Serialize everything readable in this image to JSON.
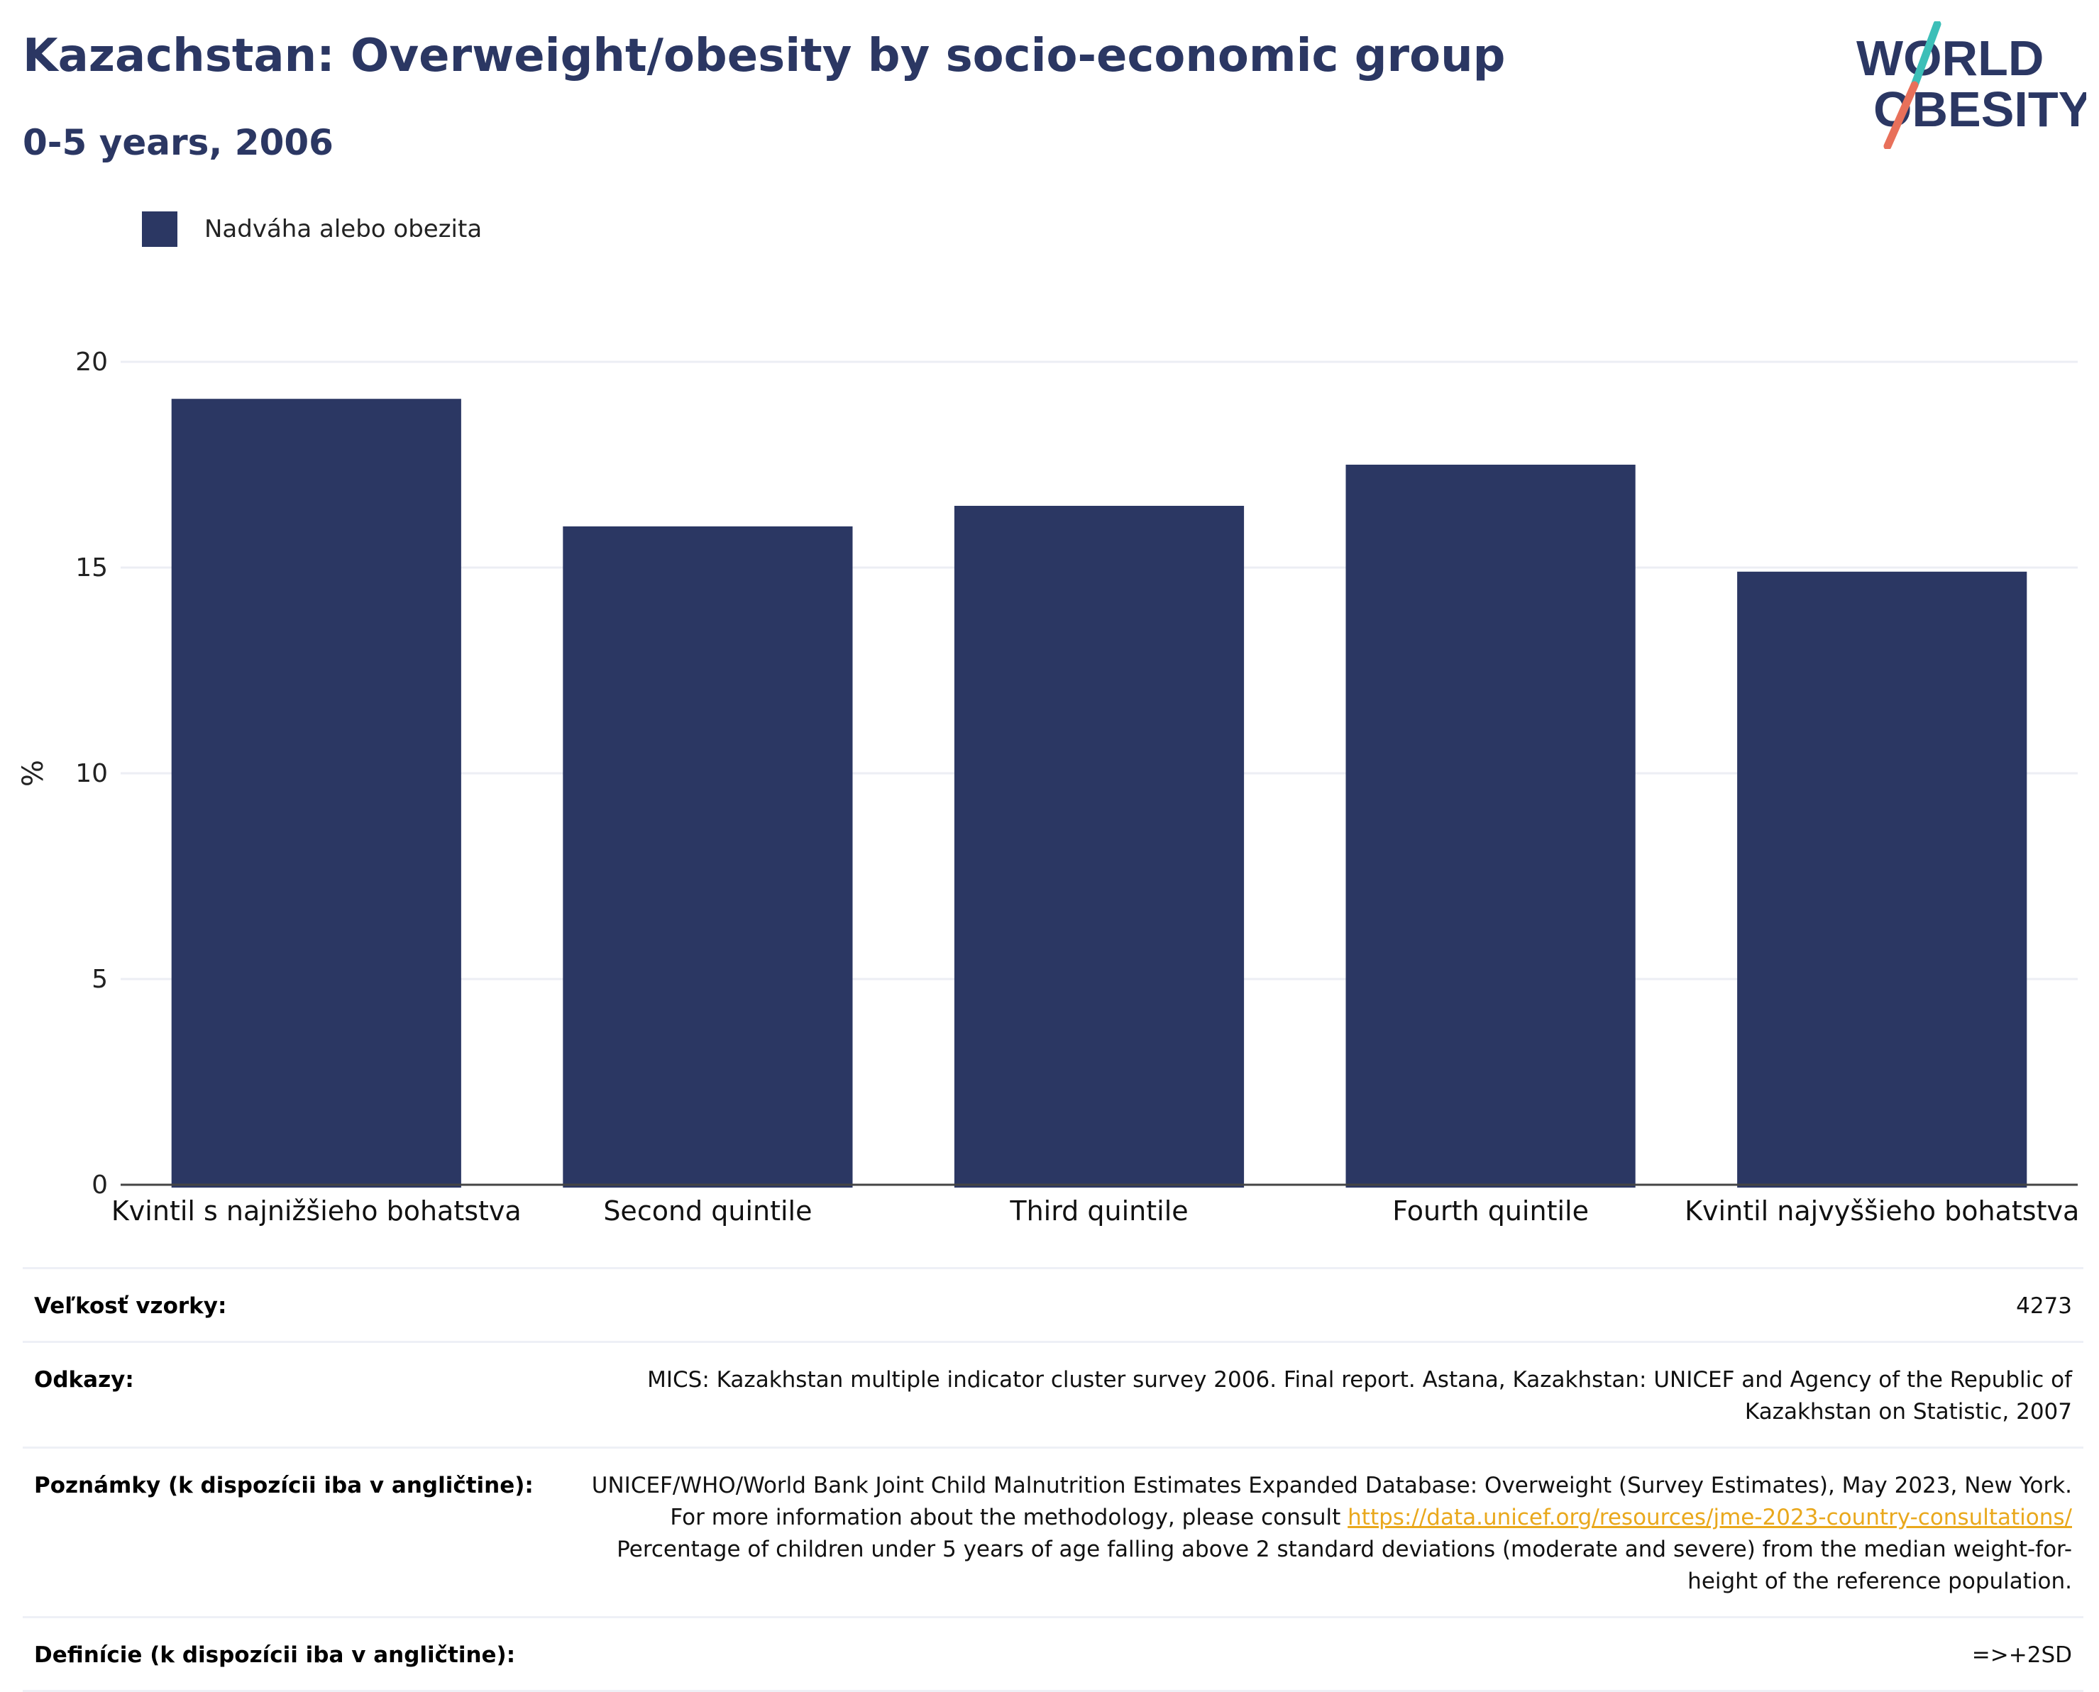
{
  "header": {
    "title": "Kazachstan: Overweight/obesity by socio-economic group",
    "subtitle": "0-5 years, 2006"
  },
  "logo": {
    "line1": "WORLD",
    "line2": "OBESITY",
    "colors": {
      "text": "#2b3763",
      "slash_top": "#3dbfb8",
      "slash_bottom": "#e8705a"
    }
  },
  "legend": {
    "label": "Nadváha alebo obezita",
    "color": "#2b3763"
  },
  "chart_data": {
    "type": "bar",
    "categories": [
      "Kvintil s najnižšieho bohatstva",
      "Second quintile",
      "Third quintile",
      "Fourth quintile",
      "Kvintil najvyššieho bohatstva"
    ],
    "series": [
      {
        "name": "Nadváha alebo obezita",
        "values": [
          19.1,
          16.0,
          16.5,
          17.5,
          14.9
        ]
      }
    ],
    "ylabel": "%",
    "ylim": [
      0,
      20
    ],
    "yticks": [
      0,
      5,
      10,
      15,
      20
    ],
    "grid": true,
    "bar_color": "#2b3763"
  },
  "meta": {
    "sample_label": "Veľkosť vzorky:",
    "sample_value": "4273",
    "refs_label": "Odkazy:",
    "refs_value": "MICS: Kazakhstan multiple indicator cluster survey 2006. Final report. Astana, Kazakhstan: UNICEF and Agency of the Republic of Kazakhstan on Statistic, 2007",
    "notes_label": "Poznámky (k dispozícii iba v angličtine):",
    "notes_before": "UNICEF/WHO/World Bank Joint Child Malnutrition Estimates Expanded Database: Overweight (Survey Estimates), May 2023, New York. For more information about the methodology, please consult ",
    "notes_link": "https://data.unicef.org/resources/jme-2023-country-consultations/",
    "notes_after": " Percentage of children under 5 years of age falling above 2 standard deviations (moderate and severe) from the median weight-for-height of the reference population.",
    "defs_label": "Definície (k dispozícii iba v angličtine):",
    "defs_value": "=>+2SD"
  }
}
